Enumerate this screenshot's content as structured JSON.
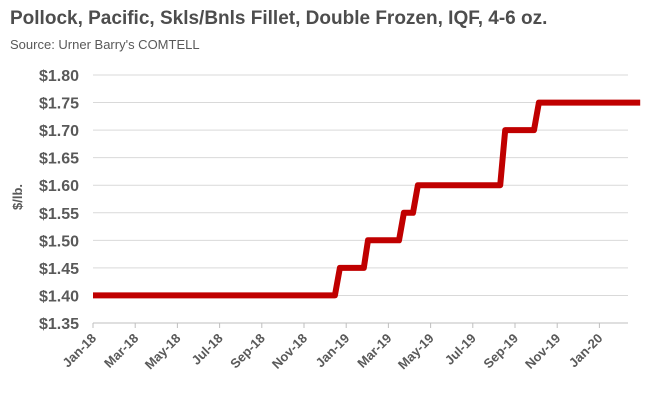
{
  "chart_data": {
    "type": "line",
    "title": "Pollock, Pacific, Skls/Bnls Fillet, Double Frozen, IQF, 4-6 oz.",
    "subtitle": "Source: Urner Barry's COMTELL",
    "ylabel": "$/lb.",
    "xlabel": "",
    "ylim": [
      1.35,
      1.8
    ],
    "yticks": [
      "$1.35",
      "$1.40",
      "$1.45",
      "$1.50",
      "$1.55",
      "$1.60",
      "$1.65",
      "$1.70",
      "$1.75",
      "$1.80"
    ],
    "xticks": [
      "Jan-18",
      "Mar-18",
      "May-18",
      "Jul-18",
      "Sep-18",
      "Nov-18",
      "Jan-19",
      "Mar-19",
      "May-19",
      "Jul-19",
      "Sep-19",
      "Nov-19",
      "Jan-20"
    ],
    "grid": "horizontal",
    "line_color": "#c00000",
    "series": [
      {
        "x": [
          "2018-01",
          "2018-12-15",
          "2018-12-22",
          "2019-01-26",
          "2019-02-02",
          "2019-03-16",
          "2019-03-23",
          "2019-04-06",
          "2019-04-13",
          "2019-08-10",
          "2019-08-17",
          "2019-09-28",
          "2019-10-05",
          "2020-02-29"
        ],
        "values": [
          1.4,
          1.4,
          1.45,
          1.45,
          1.5,
          1.5,
          1.55,
          1.55,
          1.6,
          1.6,
          1.7,
          1.7,
          1.75,
          1.75
        ]
      }
    ]
  }
}
